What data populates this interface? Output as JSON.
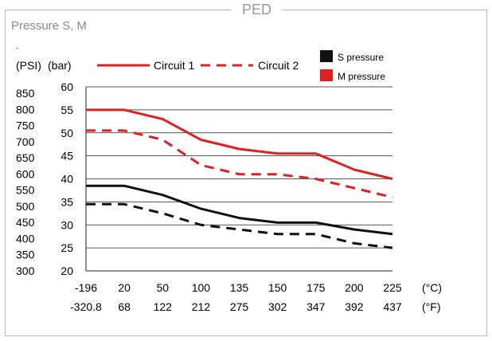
{
  "panel": {
    "title": "PED",
    "subtitle": "Pressure S, M",
    "dot": "."
  },
  "colors": {
    "circuit": "#e02020",
    "s_pressure": "#111111",
    "m_pressure": "#e02020",
    "grid": "#222222"
  },
  "chart_data": {
    "type": "line",
    "y_left_label": "(PSI)",
    "y_right_label": "(bar)",
    "y_bar_ticks": [
      20,
      25,
      30,
      35,
      40,
      45,
      50,
      55,
      60
    ],
    "y_psi_ticks": [
      300,
      350,
      400,
      450,
      500,
      550,
      600,
      650,
      700,
      750,
      800,
      850
    ],
    "ylim_bar": [
      20,
      60
    ],
    "x_c_unit": "(°C)",
    "x_f_unit": "(°F)",
    "x_c_ticks": [
      "-196",
      "20",
      "50",
      "100",
      "135",
      "150",
      "175",
      "200",
      "225"
    ],
    "x_f_ticks": [
      "-320.8",
      "68",
      "122",
      "212",
      "275",
      "302",
      "347",
      "392",
      "437"
    ],
    "x_c_values": [
      -196,
      20,
      50,
      100,
      135,
      150,
      175,
      200,
      225
    ],
    "legend": {
      "circuit1": "Circuit 1",
      "circuit2": "Circuit 2",
      "s_pressure": "S pressure",
      "m_pressure": "M pressure"
    },
    "grid": true,
    "series": [
      {
        "name": "Circuit 1",
        "pressure": "M",
        "style": "solid",
        "values": [
          55,
          55,
          53,
          48.5,
          46.5,
          45.5,
          45.5,
          42,
          40
        ]
      },
      {
        "name": "Circuit 2",
        "pressure": "M",
        "style": "dashed",
        "values": [
          50.5,
          50.5,
          48.5,
          43,
          41,
          41,
          40,
          38,
          36
        ]
      },
      {
        "name": "Circuit 1",
        "pressure": "S",
        "style": "solid",
        "values": [
          38.5,
          38.5,
          36.5,
          33.5,
          31.5,
          30.5,
          30.5,
          29,
          28
        ]
      },
      {
        "name": "Circuit 2",
        "pressure": "S",
        "style": "dashed",
        "values": [
          34.5,
          34.5,
          32.5,
          30,
          29,
          28,
          28,
          26,
          25
        ]
      }
    ]
  }
}
